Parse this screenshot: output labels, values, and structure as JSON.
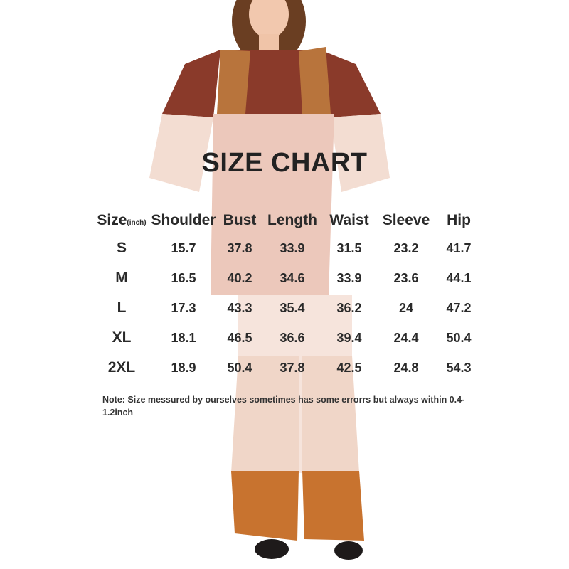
{
  "title": "SIZE CHART",
  "table": {
    "size_header": "Size",
    "unit": "(inch)",
    "headers": [
      "Shoulder",
      "Bust",
      "Length",
      "Waist",
      "Sleeve",
      "Hip"
    ],
    "rows": [
      {
        "size": "S",
        "values": [
          "15.7",
          "37.8",
          "33.9",
          "31.5",
          "23.2",
          "41.7"
        ]
      },
      {
        "size": "M",
        "values": [
          "16.5",
          "40.2",
          "34.6",
          "33.9",
          "23.6",
          "44.1"
        ]
      },
      {
        "size": "L",
        "values": [
          "17.3",
          "43.3",
          "35.4",
          "36.2",
          "24",
          "47.2"
        ]
      },
      {
        "size": "XL",
        "values": [
          "18.1",
          "46.5",
          "36.6",
          "39.4",
          "24.4",
          "50.4"
        ]
      },
      {
        "size": "2XL",
        "values": [
          "18.9",
          "50.4",
          "37.8",
          "42.5",
          "24.8",
          "54.3"
        ]
      }
    ]
  },
  "note": "Note:  Size messured by ourselves sometimes has some errorrs but always within 0.4-1.2inch",
  "colors": {
    "vest": "#b8743c",
    "fringe": "#c8732f",
    "faded": "#f3ddd2",
    "print": "#8a3a2a"
  }
}
